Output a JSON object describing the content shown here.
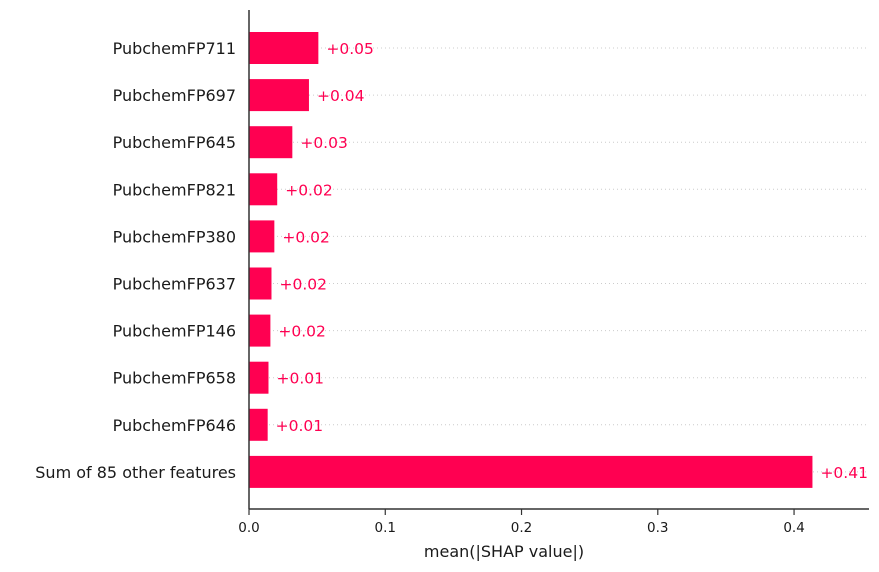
{
  "chart_data": {
    "type": "bar",
    "orientation": "horizontal",
    "categories": [
      "PubchemFP711",
      "PubchemFP697",
      "PubchemFP645",
      "PubchemFP821",
      "PubchemFP380",
      "PubchemFP637",
      "PubchemFP146",
      "PubchemFP658",
      "PubchemFP646",
      "Sum of 85 other features"
    ],
    "values": [
      0.0509,
      0.044,
      0.0318,
      0.0207,
      0.0186,
      0.0165,
      0.0157,
      0.0143,
      0.0137,
      0.4135
    ],
    "data_labels": [
      "+0.05",
      "+0.04",
      "+0.03",
      "+0.02",
      "+0.02",
      "+0.02",
      "+0.02",
      "+0.01",
      "+0.01",
      "+0.41"
    ],
    "xlabel": "mean(|SHAP value|)",
    "ylabel": "",
    "xlim": [
      0,
      0.455
    ],
    "xticks": [
      0.0,
      0.1,
      0.2,
      0.3,
      0.4
    ],
    "xtick_labels": [
      "0.0",
      "0.1",
      "0.2",
      "0.3",
      "0.4"
    ],
    "grid": "horizontal-dotted",
    "colors": {
      "bar": "#ff0051",
      "label": "#ff0051",
      "axis": "#333333",
      "grid": "#cccccc"
    }
  }
}
